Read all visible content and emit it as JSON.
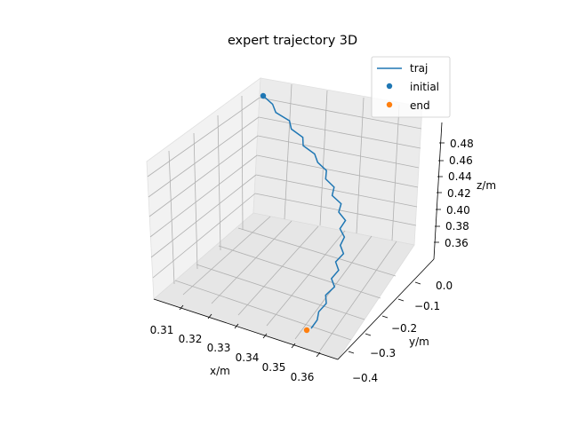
{
  "chart_data": {
    "type": "line3d",
    "title": "expert trajectory 3D",
    "xlabel": "x/m",
    "ylabel": "y/m",
    "zlabel": "z/m",
    "x_ticks": [
      "0.31",
      "0.32",
      "0.33",
      "0.34",
      "0.35",
      "0.36"
    ],
    "y_ticks": [
      "0.0",
      "−0.1",
      "−0.2",
      "−0.3",
      "−0.4"
    ],
    "z_ticks": [
      "0.48",
      "0.46",
      "0.44",
      "0.42",
      "0.40",
      "0.38",
      "0.36"
    ],
    "legend": [
      {
        "label": "traj",
        "kind": "line",
        "color": "#1f77b4"
      },
      {
        "label": "initial",
        "kind": "dot",
        "color": "#1f77b4"
      },
      {
        "label": "end",
        "kind": "dot",
        "color": "#ff7f0e"
      }
    ],
    "legend_position": "top-right",
    "grid": true,
    "series": [
      {
        "name": "traj",
        "color": "#1f77b4",
        "points_xyz": [
          [
            0.312,
            0.02,
            0.49
          ],
          [
            0.313,
            0.01,
            0.486
          ],
          [
            0.315,
            0.0,
            0.482
          ],
          [
            0.317,
            -0.01,
            0.478
          ],
          [
            0.319,
            -0.02,
            0.473
          ],
          [
            0.321,
            -0.03,
            0.469
          ],
          [
            0.323,
            -0.04,
            0.464
          ],
          [
            0.325,
            -0.05,
            0.459
          ],
          [
            0.327,
            -0.06,
            0.454
          ],
          [
            0.329,
            -0.07,
            0.448
          ],
          [
            0.33,
            -0.08,
            0.442
          ],
          [
            0.331,
            -0.09,
            0.436
          ],
          [
            0.332,
            -0.1,
            0.43
          ],
          [
            0.333,
            -0.11,
            0.424
          ],
          [
            0.334,
            -0.12,
            0.418
          ],
          [
            0.335,
            -0.13,
            0.412
          ],
          [
            0.336,
            -0.14,
            0.406
          ],
          [
            0.338,
            -0.15,
            0.4
          ],
          [
            0.34,
            -0.16,
            0.394
          ],
          [
            0.342,
            -0.17,
            0.388
          ],
          [
            0.344,
            -0.18,
            0.382
          ],
          [
            0.346,
            -0.19,
            0.376
          ],
          [
            0.348,
            -0.2,
            0.37
          ],
          [
            0.35,
            -0.21,
            0.365
          ],
          [
            0.352,
            -0.22,
            0.361
          ],
          [
            0.353,
            -0.23,
            0.357
          ],
          [
            0.354,
            -0.24,
            0.354
          ],
          [
            0.355,
            -0.25,
            0.352
          ],
          [
            0.355,
            -0.26,
            0.35
          ]
        ]
      }
    ],
    "markers": [
      {
        "name": "initial",
        "color": "#1f77b4",
        "xyz": [
          0.312,
          0.02,
          0.49
        ]
      },
      {
        "name": "end",
        "color": "#ff7f0e",
        "xyz": [
          0.355,
          -0.26,
          0.35
        ]
      }
    ]
  }
}
